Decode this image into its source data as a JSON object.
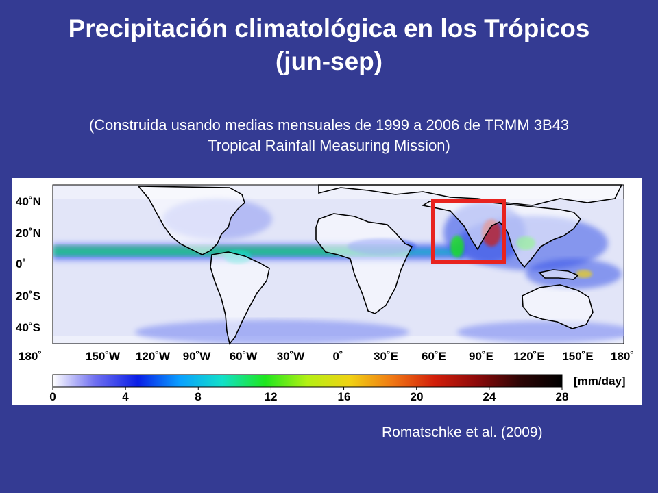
{
  "slide": {
    "title_line1": "Precipitación climatológica en los Trópicos",
    "title_line2": "(jun-sep)",
    "subtitle_line1": "(Construida usando medias mensuales de 1999 a 2006 de TRMM 3B43",
    "subtitle_line2": "Tropical Rainfall Measuring Mission)",
    "credit": "Romatschke et al. (2009)"
  },
  "map": {
    "lat_labels": [
      "40˚N",
      "20˚N",
      "0˚",
      "20˚S",
      "40˚S"
    ],
    "lon_labels": [
      "180˚",
      "150˚W",
      "120˚W",
      "90˚W",
      "60˚W",
      "30˚W",
      "0˚",
      "30˚E",
      "60˚E",
      "90˚E",
      "120˚E",
      "150˚E",
      "180˚"
    ],
    "highlight_box_color": "#e8231f",
    "colorbar": {
      "ticks": [
        "0",
        "4",
        "8",
        "12",
        "16",
        "20",
        "24",
        "28"
      ],
      "units": "[mm/day]",
      "colors": [
        "#ffffff",
        "#6f6ff0",
        "#0a1ee6",
        "#0aa0ff",
        "#12e0c8",
        "#1ee61e",
        "#b4f014",
        "#f0d214",
        "#f07814",
        "#d21e0a",
        "#8c0a0a",
        "#2d0505",
        "#000000"
      ]
    }
  }
}
